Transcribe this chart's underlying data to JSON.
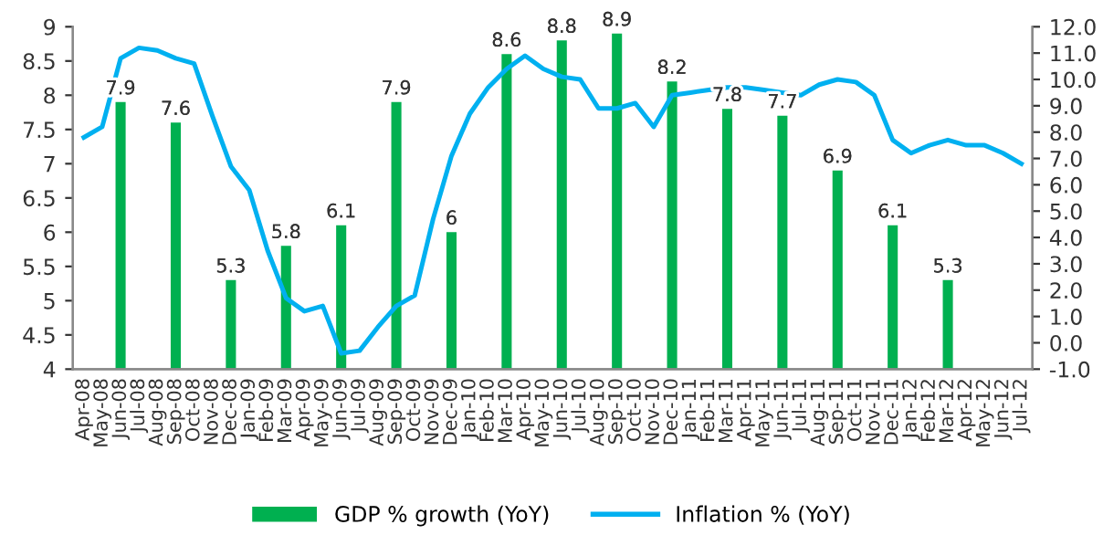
{
  "chart_data": {
    "type": "bar",
    "categories": [
      "Apr-08",
      "May-08",
      "Jun-08",
      "Jul-08",
      "Aug-08",
      "Sep-08",
      "Oct-08",
      "Nov-08",
      "Dec-08",
      "Jan-09",
      "Feb-09",
      "Mar-09",
      "Apr-09",
      "May-09",
      "Jun-09",
      "Jul-09",
      "Aug-09",
      "Sep-09",
      "Oct-09",
      "Nov-09",
      "Dec-09",
      "Jan-10",
      "Feb-10",
      "Mar-10",
      "Apr-10",
      "May-10",
      "Jun-10",
      "Jul-10",
      "Aug-10",
      "Sep-10",
      "Oct-10",
      "Nov-10",
      "Dec-10",
      "Jan-11",
      "Feb-11",
      "Mar-11",
      "Apr-11",
      "May-11",
      "Jun-11",
      "Jul-11",
      "Aug-11",
      "Sep-11",
      "Oct-11",
      "Nov-11",
      "Dec-11",
      "Jan-12",
      "Feb-12",
      "Mar-12",
      "Apr-12",
      "May-12",
      "Jun-12",
      "Jul-12"
    ],
    "series": [
      {
        "name": "GDP % growth (YoY)",
        "color": "#00b050",
        "value_labels": [
          null,
          null,
          "7.9",
          null,
          null,
          "7.6",
          null,
          null,
          "5.3",
          null,
          null,
          "5.8",
          null,
          null,
          "6.1",
          null,
          null,
          "7.9",
          null,
          null,
          "6",
          null,
          null,
          "8.6",
          null,
          null,
          "8.8",
          null,
          null,
          "8.9",
          null,
          null,
          "8.2",
          null,
          null,
          "7.8",
          null,
          null,
          "7.7",
          null,
          null,
          "6.9",
          null,
          null,
          "6.1",
          null,
          null,
          "5.3",
          null,
          null,
          null,
          null
        ],
        "values": [
          null,
          null,
          7.9,
          null,
          null,
          7.6,
          null,
          null,
          5.3,
          null,
          null,
          5.8,
          null,
          null,
          6.1,
          null,
          null,
          7.9,
          null,
          null,
          6,
          null,
          null,
          8.6,
          null,
          null,
          8.8,
          null,
          null,
          8.9,
          null,
          null,
          8.2,
          null,
          null,
          7.8,
          null,
          null,
          7.7,
          null,
          null,
          6.9,
          null,
          null,
          6.1,
          null,
          null,
          5.3,
          null,
          null,
          null,
          null
        ]
      },
      {
        "name": "Inflation % (YoY)",
        "type": "line",
        "axis": "y2",
        "color": "#00b0f0",
        "values": [
          7.8,
          8.2,
          10.8,
          11.2,
          11.1,
          10.8,
          10.6,
          8.6,
          6.7,
          5.8,
          3.5,
          1.7,
          1.2,
          1.4,
          -0.4,
          -0.3,
          0.6,
          1.4,
          1.8,
          4.7,
          7.1,
          8.7,
          9.7,
          10.4,
          10.9,
          10.4,
          10.1,
          10.0,
          8.9,
          8.9,
          9.1,
          8.2,
          9.4,
          9.5,
          9.6,
          9.7,
          9.7,
          9.6,
          9.5,
          9.4,
          9.8,
          10.0,
          9.9,
          9.4,
          7.7,
          7.2,
          7.5,
          7.7,
          7.5,
          7.5,
          7.2,
          6.8
        ]
      }
    ],
    "ylim": [
      4,
      9
    ],
    "yticks": [
      4,
      4.5,
      5,
      5.5,
      6,
      6.5,
      7,
      7.5,
      8,
      8.5,
      9
    ],
    "y2lim": [
      -1,
      12
    ],
    "y2ticks": [
      {
        "value": -1,
        "label": "-1.0"
      },
      {
        "value": 0,
        "label": "0.0"
      },
      {
        "value": 1,
        "label": "1.0"
      },
      {
        "value": 2,
        "label": "2.0"
      },
      {
        "value": 3,
        "label": "3.0"
      },
      {
        "value": 4,
        "label": "4.0"
      },
      {
        "value": 5,
        "label": "5.0"
      },
      {
        "value": 6,
        "label": "6.0"
      },
      {
        "value": 7,
        "label": "7.0"
      },
      {
        "value": 8,
        "label": "8.0"
      },
      {
        "value": 9,
        "label": "9.0"
      },
      {
        "value": 10,
        "label": "10.0"
      },
      {
        "value": 11,
        "label": "11.0"
      },
      {
        "value": 12,
        "label": "12.0"
      }
    ],
    "grid": false,
    "legend": "bottom"
  }
}
